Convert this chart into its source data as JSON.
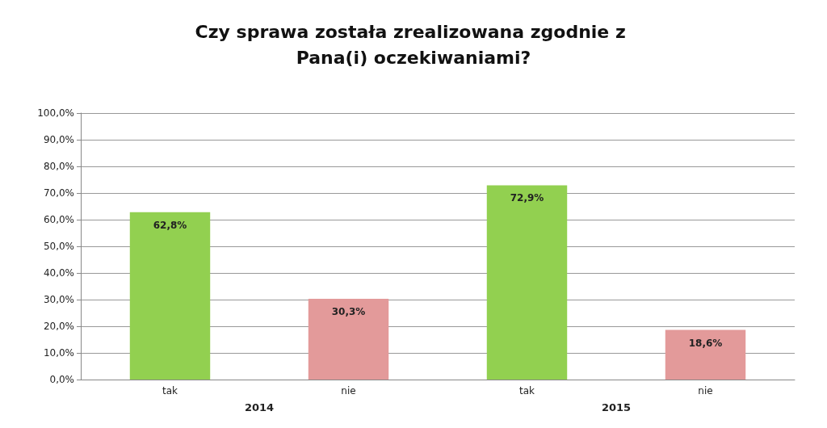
{
  "chart_data": {
    "type": "bar",
    "title": "Czy sprawa została zrealizowana zgodnie z Pana(i) oczekiwaniami?",
    "categories": [
      "tak",
      "nie",
      "tak",
      "nie"
    ],
    "values": [
      62.8,
      30.3,
      72.9,
      18.6
    ],
    "colors": [
      "#92d050",
      "#e39a9a",
      "#92d050",
      "#e39a9a"
    ],
    "value_labels": [
      "62,8%",
      "30,3%",
      "72,9%",
      "18,6%"
    ],
    "annotations": [
      "2014",
      "2015"
    ],
    "ylim": [
      0,
      100
    ],
    "yticks": [
      {
        "value": 0,
        "label": "0,0%"
      },
      {
        "value": 10,
        "label": "10,0%"
      },
      {
        "value": 20,
        "label": "20,0%"
      },
      {
        "value": 30,
        "label": "30,0%"
      },
      {
        "value": 40,
        "label": "40,0%"
      },
      {
        "value": 50,
        "label": "50,0%"
      },
      {
        "value": 60,
        "label": "60,0%"
      },
      {
        "value": 70,
        "label": "70,0%"
      },
      {
        "value": 80,
        "label": "80,0%"
      },
      {
        "value": 90,
        "label": "90,0%"
      },
      {
        "value": 100,
        "label": "100,0%"
      }
    ],
    "grid": "y"
  }
}
